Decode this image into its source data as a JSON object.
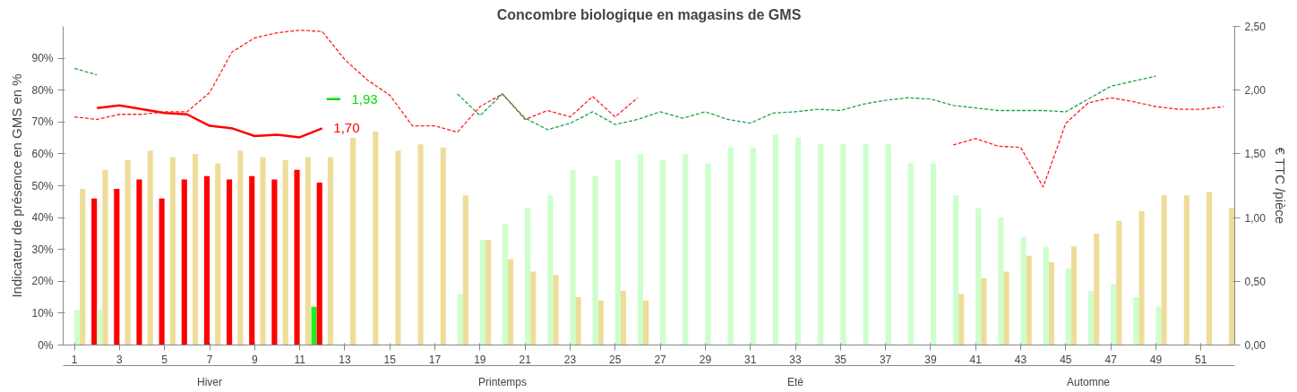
{
  "chart_data": {
    "type": "bar",
    "title": "Concombre biologique en magasins de GMS",
    "ylabel": "Indicateur de présence en GMS en %",
    "y2label": "€ TTC /pièce",
    "x": [
      1,
      2,
      3,
      4,
      5,
      6,
      7,
      8,
      9,
      10,
      11,
      12,
      13,
      14,
      15,
      16,
      17,
      18,
      19,
      20,
      21,
      22,
      23,
      24,
      25,
      26,
      27,
      28,
      29,
      30,
      31,
      32,
      33,
      34,
      35,
      36,
      37,
      38,
      39,
      40,
      41,
      42,
      43,
      44,
      45,
      46,
      47,
      48,
      49,
      50,
      51,
      52
    ],
    "xlim": [
      0.5,
      52.5
    ],
    "xticks": [
      1,
      3,
      5,
      7,
      9,
      11,
      13,
      15,
      17,
      19,
      21,
      23,
      25,
      27,
      29,
      31,
      33,
      35,
      37,
      39,
      41,
      43,
      45,
      47,
      49,
      51
    ],
    "ylim": [
      0,
      100
    ],
    "yticks": [
      {
        "value": 0,
        "label": "0%"
      },
      {
        "value": 10,
        "label": "10%"
      },
      {
        "value": 20,
        "label": "20%"
      },
      {
        "value": 30,
        "label": "30%"
      },
      {
        "value": 40,
        "label": "40%"
      },
      {
        "value": 50,
        "label": "50%"
      },
      {
        "value": 60,
        "label": "60%"
      },
      {
        "value": 70,
        "label": "70%"
      },
      {
        "value": 80,
        "label": "80%"
      },
      {
        "value": 90,
        "label": "90%"
      }
    ],
    "y2lim": [
      0,
      2.5
    ],
    "y2ticks": [
      {
        "value": 0,
        "label": "0,00"
      },
      {
        "value": 0.5,
        "label": "0,50"
      },
      {
        "value": 1,
        "label": "1,00"
      },
      {
        "value": 1.5,
        "label": "1,50"
      },
      {
        "value": 2,
        "label": "2,00"
      },
      {
        "value": 2.5,
        "label": "2,50"
      }
    ],
    "annotations": [
      "Hiver",
      "Printemps",
      "Eté",
      "Automne"
    ],
    "series": [
      {
        "color": "#22ee22",
        "values": [
          null,
          null,
          null,
          null,
          null,
          null,
          null,
          null,
          null,
          null,
          null,
          12,
          null,
          null,
          null,
          null,
          null,
          null,
          null,
          null,
          null,
          null,
          null,
          null,
          null,
          null,
          null,
          null,
          null,
          null,
          null,
          null,
          null,
          null,
          null,
          null,
          null,
          null,
          null,
          null,
          null,
          null,
          null,
          null,
          null,
          null,
          null,
          null,
          null,
          null,
          null,
          null
        ]
      },
      {
        "color": "#ff0000",
        "values": [
          null,
          46,
          49,
          52,
          46,
          52,
          53,
          52,
          53,
          52,
          55,
          51,
          null,
          null,
          null,
          null,
          null,
          null,
          null,
          null,
          null,
          null,
          null,
          null,
          null,
          null,
          null,
          null,
          null,
          null,
          null,
          null,
          null,
          null,
          null,
          null,
          null,
          null,
          null,
          null,
          null,
          null,
          null,
          null,
          null,
          null,
          null,
          null,
          null,
          null,
          null,
          null
        ]
      },
      {
        "color": "#ccffcc",
        "values": [
          11,
          11,
          null,
          null,
          null,
          null,
          null,
          null,
          null,
          null,
          null,
          null,
          null,
          null,
          null,
          null,
          null,
          16,
          33,
          38,
          43,
          47,
          55,
          53,
          58,
          60,
          58,
          60,
          57,
          62,
          62,
          66,
          65,
          63,
          63,
          63,
          63,
          57,
          57,
          47,
          43,
          40,
          34,
          31,
          24,
          17,
          19,
          15,
          12,
          null,
          null,
          null
        ]
      },
      {
        "color": "#eedd99",
        "values": [
          49,
          55,
          58,
          61,
          59,
          60,
          57,
          61,
          59,
          58,
          59,
          59,
          65,
          67,
          61,
          63,
          62,
          47,
          33,
          27,
          23,
          22,
          15,
          14,
          17,
          14,
          null,
          null,
          null,
          null,
          null,
          null,
          null,
          null,
          null,
          null,
          null,
          null,
          null,
          16,
          21,
          23,
          28,
          26,
          31,
          35,
          39,
          42,
          47,
          47,
          48,
          43
        ]
      },
      {
        "type": "line",
        "axis": "y2",
        "line_style": "dashed",
        "color": "#ff2020",
        "values": [
          1.79,
          1.77,
          1.81,
          1.81,
          1.83,
          1.83,
          1.98,
          2.3,
          2.41,
          2.45,
          2.47,
          2.46,
          2.24,
          2.08,
          1.96,
          1.72,
          1.72,
          1.67,
          1.87,
          1.97,
          1.77,
          1.84,
          1.79,
          1.95,
          1.79,
          1.94,
          null,
          null,
          null,
          null,
          null,
          null,
          null,
          null,
          null,
          null,
          null,
          null,
          null,
          1.57,
          1.62,
          1.56,
          1.55,
          1.24,
          1.74,
          1.9,
          1.94,
          1.91,
          1.87,
          1.85,
          1.85,
          1.87
        ]
      },
      {
        "type": "line",
        "axis": "y2",
        "line_style": "dashed",
        "color": "#1aa64a",
        "values": [
          2.17,
          2.12,
          null,
          null,
          null,
          null,
          null,
          null,
          null,
          null,
          null,
          null,
          null,
          null,
          null,
          null,
          null,
          1.97,
          1.8,
          1.97,
          1.78,
          1.69,
          1.74,
          1.83,
          1.73,
          1.77,
          1.83,
          1.78,
          1.83,
          1.77,
          1.74,
          1.82,
          1.83,
          1.85,
          1.84,
          1.89,
          1.92,
          1.94,
          1.93,
          1.88,
          1.86,
          1.84,
          1.84,
          1.84,
          1.83,
          1.93,
          2.03,
          2.07,
          2.11,
          null,
          null,
          null
        ]
      },
      {
        "type": "line",
        "axis": "y2",
        "line_style": "solid",
        "color": "#ff0000",
        "values": [
          null,
          1.86,
          1.88,
          1.85,
          1.82,
          1.81,
          1.72,
          1.7,
          1.64,
          1.65,
          1.63,
          1.7,
          null,
          null,
          null,
          null,
          null,
          null,
          null,
          null,
          null,
          null,
          null,
          null,
          null,
          null,
          null,
          null,
          null,
          null,
          null,
          null,
          null,
          null,
          null,
          null,
          null,
          null,
          null,
          null,
          null,
          null,
          null,
          null,
          null,
          null,
          null,
          null,
          null,
          null,
          null,
          null
        ],
        "value_labels": [
          null,
          null,
          null,
          null,
          null,
          null,
          null,
          null,
          null,
          null,
          null,
          "1,70",
          null,
          null,
          null,
          null,
          null,
          null,
          null,
          null,
          null,
          null,
          null,
          null,
          null,
          null,
          null,
          null,
          null,
          null,
          null,
          null,
          null,
          null,
          null,
          null,
          null,
          null,
          null,
          null,
          null,
          null,
          null,
          null,
          null,
          null,
          null,
          null,
          null,
          null,
          null,
          null
        ]
      },
      {
        "type": "line",
        "axis": "y2",
        "line_style": "solid",
        "color": "#00dd00",
        "x": [
          12.2,
          12.8
        ],
        "values": [
          1.93,
          1.93
        ],
        "value_labels": [
          null,
          "1,93"
        ]
      }
    ]
  }
}
